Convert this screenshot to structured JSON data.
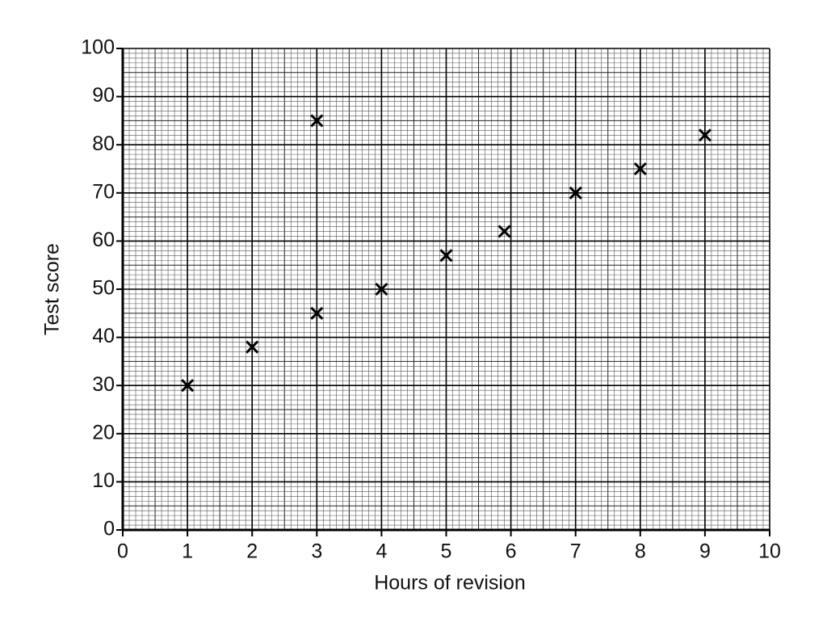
{
  "chart_data": {
    "type": "scatter",
    "x_label": "Hours of revision",
    "y_label": "Test score",
    "series": [
      {
        "x": [
          1,
          2,
          3,
          3,
          4,
          5,
          5.9,
          7,
          8,
          9
        ],
        "values": [
          30,
          38,
          85,
          45,
          50,
          57,
          62,
          70,
          75,
          82
        ],
        "color": "#000000"
      }
    ],
    "xlim": [
      0,
      10
    ],
    "xticks": [
      0,
      1,
      2,
      3,
      4,
      5,
      6,
      7,
      8,
      9,
      10
    ],
    "ylim": [
      0,
      100
    ],
    "yticks": [
      0,
      10,
      20,
      30,
      40,
      50,
      60,
      70,
      80,
      90,
      100
    ],
    "grid": true
  }
}
